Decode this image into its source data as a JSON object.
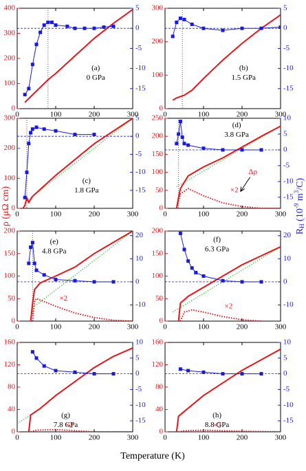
{
  "labels": {
    "x": "Temperature (K)",
    "y": "ρ (μΩ cm)",
    "y2": [
      "R",
      "H",
      " (10",
      "-9",
      " m",
      "3",
      "/C)"
    ]
  },
  "chart_data": [
    {
      "type": "line",
      "label": "(a)",
      "pressure": "0 GPa",
      "xlim": [
        0,
        300
      ],
      "xticks": [
        0,
        100,
        200,
        300
      ],
      "ylim": [
        0,
        400
      ],
      "yticks": [
        0,
        100,
        200,
        300,
        400
      ],
      "y2lim": [
        -20,
        5
      ],
      "y2ticks": [
        -15,
        -10,
        -5,
        0,
        5
      ],
      "vline": 80,
      "hline_y2": 0,
      "series": [
        {
          "color": "#e8141b",
          "style": "solid",
          "x": [
            20,
            50,
            80,
            100,
            150,
            200,
            250,
            300
          ],
          "values": [
            25,
            70,
            115,
            140,
            210,
            280,
            340,
            395
          ]
        },
        {
          "color": "#1a1adb",
          "style": "points",
          "axis": "y2",
          "x": [
            20,
            30,
            40,
            50,
            60,
            70,
            80,
            90,
            100,
            130,
            150,
            175,
            200,
            225,
            250
          ],
          "values": [
            -16.5,
            -15,
            -9,
            -4,
            -1,
            0.8,
            1.5,
            1.5,
            0.8,
            0.5,
            0,
            0,
            0,
            0.3,
            0.5
          ]
        }
      ],
      "annotations": []
    },
    {
      "type": "line",
      "label": "(b)",
      "pressure": "1.5 GPa",
      "xlim": [
        0,
        300
      ],
      "xticks": [
        0,
        100,
        200,
        300
      ],
      "ylim": [
        0,
        300
      ],
      "yticks": [
        0,
        100,
        200,
        300
      ],
      "y2lim": [
        -20,
        5
      ],
      "y2ticks": [
        -15,
        -10,
        -5,
        0,
        5
      ],
      "vline": 45,
      "hline_y2": 0,
      "series": [
        {
          "color": "#e8141b",
          "style": "solid",
          "x": [
            20,
            30,
            50,
            70,
            100,
            150,
            200,
            250,
            300
          ],
          "values": [
            25,
            32,
            40,
            55,
            90,
            145,
            195,
            240,
            280
          ]
        },
        {
          "color": "#1a1adb",
          "style": "points",
          "axis": "y2",
          "x": [
            20,
            30,
            40,
            50,
            70,
            100,
            150,
            200,
            250,
            300
          ],
          "values": [
            -2,
            1.5,
            2.5,
            2.2,
            1,
            0,
            -0.5,
            0,
            0,
            0.3
          ]
        }
      ],
      "annotations": []
    },
    {
      "type": "line",
      "label": "(c)",
      "pressure": "1.8 GPa",
      "xlim": [
        0,
        300
      ],
      "xticks": [
        0,
        100,
        200,
        300
      ],
      "ylim": [
        0,
        300
      ],
      "yticks": [
        0,
        100,
        200,
        300
      ],
      "y2lim": [
        -20,
        5
      ],
      "y2ticks": [
        -15,
        -10,
        -5,
        0,
        5
      ],
      "vline": 25,
      "hline_y2": 0,
      "series": [
        {
          "color": "#39c339",
          "style": "dotted",
          "x": [
            25,
            300
          ],
          "values": [
            25,
            300
          ]
        },
        {
          "color": "#e8141b",
          "style": "solid",
          "x": [
            15,
            20,
            25,
            30,
            40,
            100,
            200,
            300
          ],
          "values": [
            0,
            10,
            35,
            20,
            40,
            110,
            215,
            300
          ]
        },
        {
          "color": "#1a1adb",
          "style": "points",
          "axis": "y2",
          "x": [
            20,
            25,
            30,
            35,
            40,
            50,
            70,
            100,
            150,
            200
          ],
          "values": [
            -17,
            -10,
            -2,
            1,
            2,
            2.5,
            2,
            1.5,
            0.5,
            0.5
          ]
        }
      ],
      "annotations": []
    },
    {
      "type": "line",
      "label": "(d)",
      "pressure": "3.8 GPa",
      "xlim": [
        0,
        300
      ],
      "xticks": [
        0,
        100,
        200,
        300
      ],
      "ylim": [
        0,
        250
      ],
      "yticks": [
        0,
        50,
        100,
        150,
        200,
        250
      ],
      "y2lim": [
        -18.5,
        10
      ],
      "y2ticks": [
        -15,
        -10,
        -5,
        0,
        5,
        10
      ],
      "vline": 35,
      "hline_y2": 0,
      "series": [
        {
          "color": "#39c339",
          "style": "dotted",
          "x": [
            30,
            300
          ],
          "values": [
            60,
            228
          ]
        },
        {
          "color": "#e8141b",
          "style": "solid",
          "x": [
            30,
            35,
            40,
            60,
            100,
            150,
            200,
            250,
            300
          ],
          "values": [
            0,
            30,
            55,
            90,
            115,
            140,
            170,
            200,
            228
          ]
        },
        {
          "color": "#e8141b",
          "style": "dotted",
          "x": [
            30,
            40,
            60,
            80,
            100,
            150,
            200,
            250,
            300
          ],
          "values": [
            0,
            40,
            55,
            45,
            35,
            15,
            5,
            0,
            0
          ]
        },
        {
          "color": "#1a1adb",
          "style": "points",
          "axis": "y2",
          "x": [
            30,
            35,
            40,
            45,
            50,
            60,
            100,
            150,
            200,
            250
          ],
          "values": [
            2,
            5,
            9,
            4,
            2,
            1.5,
            0.5,
            0,
            0,
            0
          ]
        }
      ],
      "annotations": [
        "×2",
        "Δρ"
      ]
    },
    {
      "type": "line",
      "label": "(e)",
      "pressure": "4.8 GPa",
      "xlim": [
        0,
        300
      ],
      "xticks": [
        0,
        100,
        200,
        300
      ],
      "ylim": [
        0,
        200
      ],
      "yticks": [
        0,
        50,
        100,
        150,
        200
      ],
      "y2lim": [
        -17,
        22
      ],
      "y2ticks": [
        -10,
        0,
        10,
        20
      ],
      "vline": 40,
      "hline_y2": 0,
      "series": [
        {
          "color": "#39c339",
          "style": "dotted",
          "x": [
            40,
            300
          ],
          "values": [
            30,
            200
          ]
        },
        {
          "color": "#e8141b",
          "style": "solid",
          "x": [
            35,
            40,
            45,
            60,
            100,
            150,
            200,
            250,
            300
          ],
          "values": [
            0,
            40,
            70,
            85,
            100,
            120,
            150,
            175,
            200
          ]
        },
        {
          "color": "#e8141b",
          "style": "dotted",
          "x": [
            40,
            45,
            50,
            80,
            100,
            150,
            200,
            250,
            300
          ],
          "values": [
            0,
            45,
            50,
            40,
            33,
            18,
            8,
            2,
            0
          ]
        },
        {
          "color": "#1a1adb",
          "style": "points",
          "axis": "y2",
          "x": [
            30,
            35,
            40,
            45,
            50,
            70,
            100,
            150,
            200,
            250
          ],
          "values": [
            8,
            15,
            17,
            8,
            5,
            3,
            1,
            0.5,
            0,
            0
          ]
        }
      ],
      "annotations": [
        "×2"
      ]
    },
    {
      "type": "line",
      "label": "(f)",
      "pressure": "6.3 GPa",
      "xlim": [
        0,
        300
      ],
      "xticks": [
        0,
        100,
        200,
        300
      ],
      "ylim": [
        0,
        200
      ],
      "yticks": [
        0,
        50,
        100,
        150,
        200
      ],
      "y2lim": [
        -17,
        22
      ],
      "y2ticks": [
        -10,
        0,
        10,
        20
      ],
      "hline_y2": 0,
      "series": [
        {
          "color": "#39c339",
          "style": "dotted",
          "x": [
            20,
            300
          ],
          "values": [
            20,
            165
          ]
        },
        {
          "color": "#e8141b",
          "style": "solid",
          "x": [
            35,
            40,
            60,
            100,
            150,
            200,
            250,
            300
          ],
          "values": [
            0,
            40,
            55,
            75,
            100,
            125,
            145,
            165
          ]
        },
        {
          "color": "#e8141b",
          "style": "dotted",
          "x": [
            40,
            50,
            70,
            100,
            150,
            200,
            250
          ],
          "values": [
            0,
            20,
            25,
            20,
            10,
            3,
            0
          ]
        },
        {
          "color": "#1a1adb",
          "style": "points",
          "axis": "y2",
          "x": [
            40,
            50,
            60,
            70,
            80,
            100,
            150,
            200,
            250
          ],
          "values": [
            21,
            14,
            9,
            6,
            4,
            2.5,
            0.5,
            0,
            0
          ]
        }
      ],
      "annotations": [
        "×2"
      ]
    },
    {
      "type": "line",
      "label": "(g)",
      "pressure": "7.8 GPa",
      "xlim": [
        0,
        300
      ],
      "xticks": [
        0,
        100,
        200,
        300
      ],
      "ylim": [
        0,
        160
      ],
      "yticks": [
        0,
        40,
        80,
        120,
        160
      ],
      "y2lim": [
        -18.5,
        10
      ],
      "y2ticks": [
        -15,
        -10,
        -5,
        0,
        5,
        10
      ],
      "hline_y2": 0,
      "series": [
        {
          "color": "#39c339",
          "style": "dotted",
          "x": [
            0,
            35
          ],
          "values": [
            15,
            30
          ]
        },
        {
          "color": "#e8141b",
          "style": "solid",
          "x": [
            30,
            35,
            60,
            100,
            150,
            200,
            250,
            300
          ],
          "values": [
            0,
            30,
            42,
            65,
            90,
            115,
            135,
            150
          ]
        },
        {
          "color": "#e8141b",
          "style": "dotted",
          "x": [
            35,
            50,
            100,
            150,
            200,
            300
          ],
          "values": [
            0,
            3,
            4,
            2,
            0,
            0
          ]
        },
        {
          "color": "#1a1adb",
          "style": "points",
          "axis": "y2",
          "x": [
            40,
            50,
            70,
            100,
            150,
            200,
            250
          ],
          "values": [
            7,
            5,
            2.5,
            1,
            0.5,
            0,
            0
          ]
        }
      ],
      "annotations": [
        "×2"
      ]
    },
    {
      "type": "line",
      "label": "(h)",
      "pressure": "8.8 GPa",
      "xlim": [
        0,
        300
      ],
      "xticks": [
        0,
        100,
        200,
        300
      ],
      "ylim": [
        0,
        160
      ],
      "yticks": [
        0,
        40,
        80,
        120,
        160
      ],
      "y2lim": [
        -18.5,
        10
      ],
      "y2ticks": [
        -15,
        -10,
        -5,
        0,
        5,
        10
      ],
      "hline_y2": 0,
      "series": [
        {
          "color": "#e8141b",
          "style": "solid",
          "x": [
            30,
            35,
            100,
            200,
            300
          ],
          "values": [
            0,
            28,
            65,
            110,
            148
          ]
        },
        {
          "color": "#e8141b",
          "style": "dotted",
          "x": [
            35,
            50,
            100,
            200,
            300
          ],
          "values": [
            0,
            2,
            3,
            1,
            0
          ]
        },
        {
          "color": "#1a1adb",
          "style": "points",
          "axis": "y2",
          "x": [
            40,
            60,
            100,
            150,
            200,
            250
          ],
          "values": [
            1.5,
            1,
            0.5,
            0,
            0,
            0
          ]
        }
      ],
      "annotations": [
        "×2"
      ]
    }
  ]
}
